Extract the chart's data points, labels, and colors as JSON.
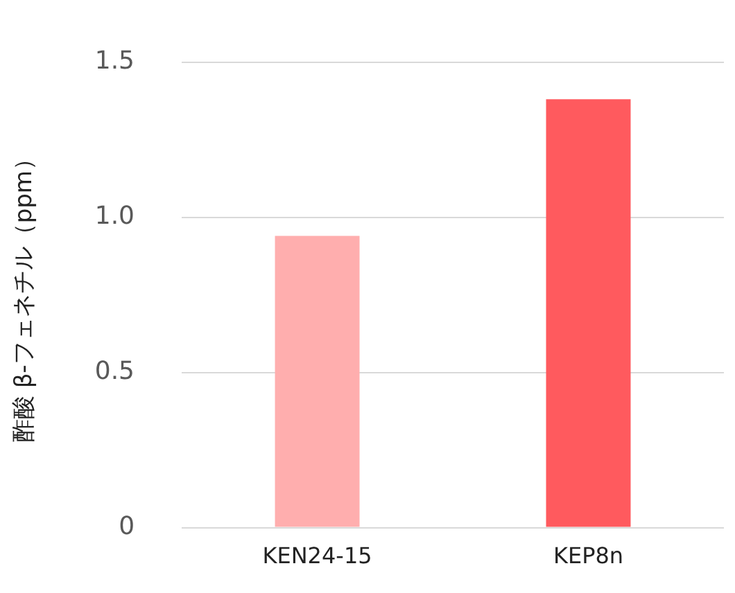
{
  "chart_data": {
    "type": "bar",
    "ylabel": "酢酸 β-フェネチル（ppm）",
    "categories": [
      "KEN24-15",
      "KEP8n"
    ],
    "values": [
      0.94,
      1.38
    ],
    "colors": [
      "#ffaeae",
      "#ff5a5e"
    ],
    "ylim": [
      0,
      1.5
    ],
    "yticks": [
      0,
      {
        "value": 0.5,
        "label": "0.5"
      },
      {
        "value": 1,
        "label": "1.0"
      },
      1.5
    ],
    "grid": "y",
    "legend": false
  }
}
